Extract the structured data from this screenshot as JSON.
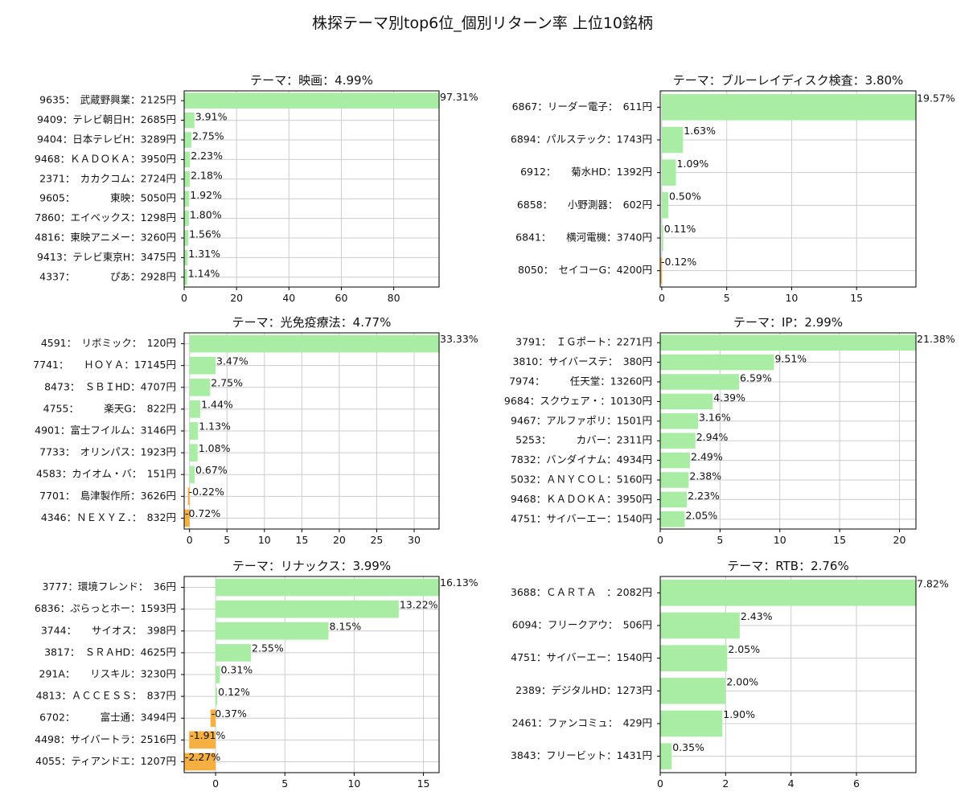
{
  "page_title": "株探テーマ別top6位_個別リターン率 上位10銘柄",
  "colors": {
    "positive": "#a8eda3",
    "negative": "#f5b041",
    "grid": "#cccccc",
    "axis": "#000000"
  },
  "chart_data": [
    {
      "type": "bar",
      "orientation": "horizontal",
      "title": "テーマ：映画：4.99%",
      "categories": [
        "9635：　武蔵野興業：2125円",
        "9409：テレビ朝日H：2685円",
        "9404：日本テレビH：3289円",
        "9468：ＫＡＤＯＫＡ：3950円",
        "2371：　カカクコム：2724円",
        "9605：　　　　東映：5050円",
        "7860：エイベックス：1298円",
        "4816：東映アニメー：3260円",
        "9413：テレビ東京H：3475円",
        "4337：　　　　ぴあ：2928円"
      ],
      "values": [
        97.31,
        3.91,
        2.75,
        2.23,
        2.18,
        1.92,
        1.8,
        1.56,
        1.31,
        1.14
      ],
      "labels": [
        "97.31%",
        "3.91%",
        "2.75%",
        "2.23%",
        "2.18%",
        "1.92%",
        "1.80%",
        "1.56%",
        "1.31%",
        "1.14%"
      ],
      "xlim": [
        0,
        97.31
      ],
      "xticks": [
        0,
        20,
        40,
        60,
        80
      ],
      "grid": true
    },
    {
      "type": "bar",
      "orientation": "horizontal",
      "title": "テーマ：ブルーレイディスク検査：3.80%",
      "categories": [
        "6867：リーダー電子：　611円",
        "6894：パルステック：1743円",
        "6912：　　菊水HD：1392円",
        "6858：　　小野測器：　602円",
        "6841：　　横河電機：3740円",
        "8050：　セイコーG：4200円"
      ],
      "values": [
        19.57,
        1.63,
        1.09,
        0.5,
        0.11,
        -0.12
      ],
      "labels": [
        "19.57%",
        "1.63%",
        "1.09%",
        "0.50%",
        "0.11%",
        "-0.12%"
      ],
      "xlim": [
        -0.12,
        19.57
      ],
      "xticks": [
        0,
        5,
        10,
        15
      ],
      "grid": true
    },
    {
      "type": "bar",
      "orientation": "horizontal",
      "title": "テーマ：光免疫療法：4.77%",
      "categories": [
        "4591：　リボミック：　120円",
        "7741：　　ＨＯＹＡ：17145円",
        "8473：　ＳＢＩHD：4707円",
        "4755：　　　楽天G：　822円",
        "4901：富士フイルム：3146円",
        "7733：　オリンパス：1923円",
        "4583：カイオム・バ：　151円",
        "7701：　島津製作所：3626円",
        "4346：ＮＥＸＹＺ．：　832円"
      ],
      "values": [
        33.33,
        3.47,
        2.75,
        1.44,
        1.13,
        1.08,
        0.67,
        -0.22,
        -0.72
      ],
      "labels": [
        "33.33%",
        "3.47%",
        "2.75%",
        "1.44%",
        "1.13%",
        "1.08%",
        "0.67%",
        "-0.22%",
        "-0.72%"
      ],
      "xlim": [
        -0.72,
        33.33
      ],
      "xticks": [
        0,
        5,
        10,
        15,
        20,
        25,
        30
      ],
      "grid": true
    },
    {
      "type": "bar",
      "orientation": "horizontal",
      "title": "テーマ：IP：2.99%",
      "categories": [
        "3791：　ＩＧポート：2271円",
        "3810：サイバーステ：　380円",
        "7974：　　　任天堂：13260円",
        "9684：スクウェア・：10130円",
        "9467：アルファポリ：1501円",
        "5253：　　　カバー：2311円",
        "7832：バンダイナム：4934円",
        "5032：ＡＮＹＣＯＬ：5160円",
        "9468：ＫＡＤＯＫＡ：3950円",
        "4751：サイバーエー：1540円"
      ],
      "values": [
        21.38,
        9.51,
        6.59,
        4.39,
        3.16,
        2.94,
        2.49,
        2.38,
        2.23,
        2.05
      ],
      "labels": [
        "21.38%",
        "9.51%",
        "6.59%",
        "4.39%",
        "3.16%",
        "2.94%",
        "2.49%",
        "2.38%",
        "2.23%",
        "2.05%"
      ],
      "xlim": [
        0,
        21.38
      ],
      "xticks": [
        0,
        5,
        10,
        15,
        20
      ],
      "grid": true
    },
    {
      "type": "bar",
      "orientation": "horizontal",
      "title": "テーマ：リナックス：3.99%",
      "categories": [
        "3777：環境フレンド：　36円",
        "6836：ぷらっとホー：1593円",
        "3744：　　サイオス：　398円",
        "3817：　ＳＲＡHD：4625円",
        "291A：　　リスキル：3230円",
        "4813：ＡＣＣＥＳＳ：　837円",
        "6702：　　　富士通：3494円",
        "4498：サイバートラ：2516円",
        "4055：ティアンドエ：1207円"
      ],
      "values": [
        16.13,
        13.22,
        8.15,
        2.55,
        0.31,
        0.12,
        -0.37,
        -1.91,
        -2.27
      ],
      "labels": [
        "16.13%",
        "13.22%",
        "8.15%",
        "2.55%",
        "0.31%",
        "0.12%",
        "-0.37%",
        "-1.91%",
        "-2.27%"
      ],
      "xlim": [
        -2.27,
        16.13
      ],
      "xticks": [
        0,
        5,
        10,
        15
      ],
      "grid": true
    },
    {
      "type": "bar",
      "orientation": "horizontal",
      "title": "テーマ：RTB：2.76%",
      "categories": [
        "3688：ＣＡＲＴＡ　：2082円",
        "6094：フリークアウ：　506円",
        "4751：サイバーエー：1540円",
        "2389：デジタルHD：1273円",
        "2461：ファンコミュ：　429円",
        "3843：フリービット：1431円"
      ],
      "values": [
        7.82,
        2.43,
        2.05,
        2.0,
        1.9,
        0.35
      ],
      "labels": [
        "7.82%",
        "2.43%",
        "2.05%",
        "2.00%",
        "1.90%",
        "0.35%"
      ],
      "xlim": [
        0,
        7.82
      ],
      "xticks": [
        0,
        2,
        4,
        6
      ],
      "grid": true
    }
  ]
}
